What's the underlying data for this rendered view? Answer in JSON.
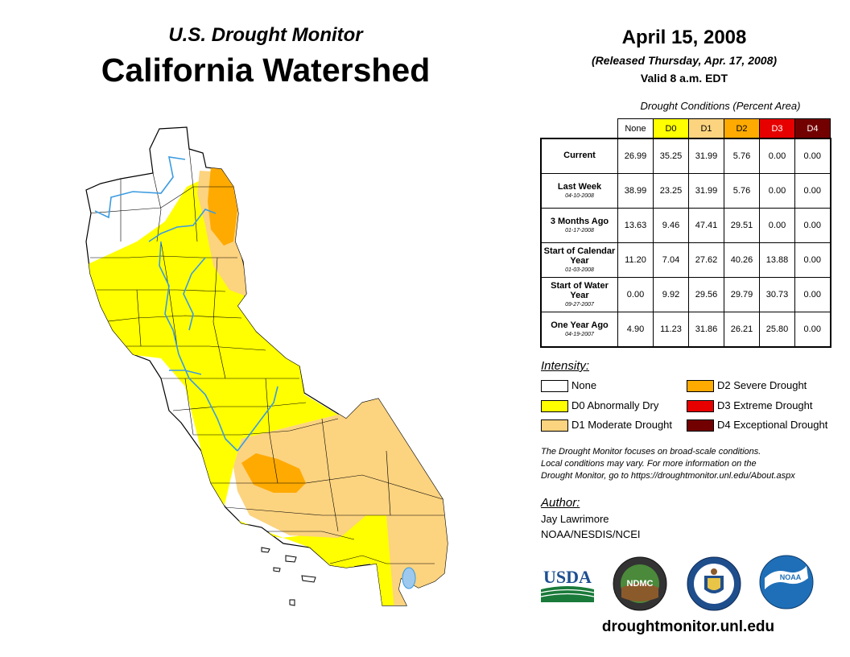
{
  "header": {
    "subtitle": "U.S. Drought Monitor",
    "title": "California Watershed",
    "date": "April 15, 2008",
    "released": "(Released Thursday, Apr. 17, 2008)",
    "valid": "Valid 8 a.m. EDT"
  },
  "table": {
    "caption": "Drought Conditions (Percent Area)",
    "columns": [
      "None",
      "D0",
      "D1",
      "D2",
      "D3",
      "D4"
    ],
    "rows": [
      {
        "label": "Current",
        "date": "",
        "values": [
          "26.99",
          "35.25",
          "31.99",
          "5.76",
          "0.00",
          "0.00"
        ]
      },
      {
        "label": "Last Week",
        "date": "04-10-2008",
        "values": [
          "38.99",
          "23.25",
          "31.99",
          "5.76",
          "0.00",
          "0.00"
        ]
      },
      {
        "label": "3 Months Ago",
        "date": "01-17-2008",
        "values": [
          "13.63",
          "9.46",
          "47.41",
          "29.51",
          "0.00",
          "0.00"
        ]
      },
      {
        "label": "Start of Calendar Year",
        "date": "01-03-2008",
        "values": [
          "11.20",
          "7.04",
          "27.62",
          "40.26",
          "13.88",
          "0.00"
        ]
      },
      {
        "label": "Start of Water Year",
        "date": "09-27-2007",
        "values": [
          "0.00",
          "9.92",
          "29.56",
          "29.79",
          "30.73",
          "0.00"
        ]
      },
      {
        "label": "One Year Ago",
        "date": "04-19-2007",
        "values": [
          "4.90",
          "11.23",
          "31.86",
          "26.21",
          "25.80",
          "0.00"
        ]
      }
    ]
  },
  "legend": {
    "title": "Intensity:",
    "items": [
      {
        "label": "None",
        "color": "#ffffff"
      },
      {
        "label": "D0 Abnormally Dry",
        "color": "#ffff00"
      },
      {
        "label": "D1 Moderate Drought",
        "color": "#fcd37f"
      },
      {
        "label": "D2 Severe Drought",
        "color": "#ffaa00"
      },
      {
        "label": "D3 Extreme Drought",
        "color": "#e60000"
      },
      {
        "label": "D4 Exceptional Drought",
        "color": "#730000"
      }
    ]
  },
  "note": {
    "line1": "The Drought Monitor focuses on broad-scale conditions.",
    "line2": "Local conditions may vary. For more information on the",
    "line3": "Drought Monitor, go to https://droughtmonitor.unl.edu/About.aspx"
  },
  "author": {
    "title": "Author:",
    "name": "Jay Lawrimore",
    "org": "NOAA/NESDIS/NCEI"
  },
  "logos": {
    "usda": "USDA",
    "ndmc": "NDMC",
    "noaa": "NOAA"
  },
  "website": "droughtmonitor.unl.edu",
  "colors": {
    "none": "#ffffff",
    "d0": "#ffff00",
    "d1": "#fcd37f",
    "d2": "#ffaa00",
    "d3": "#e60000",
    "d4": "#730000",
    "river": "#3b9be0"
  }
}
